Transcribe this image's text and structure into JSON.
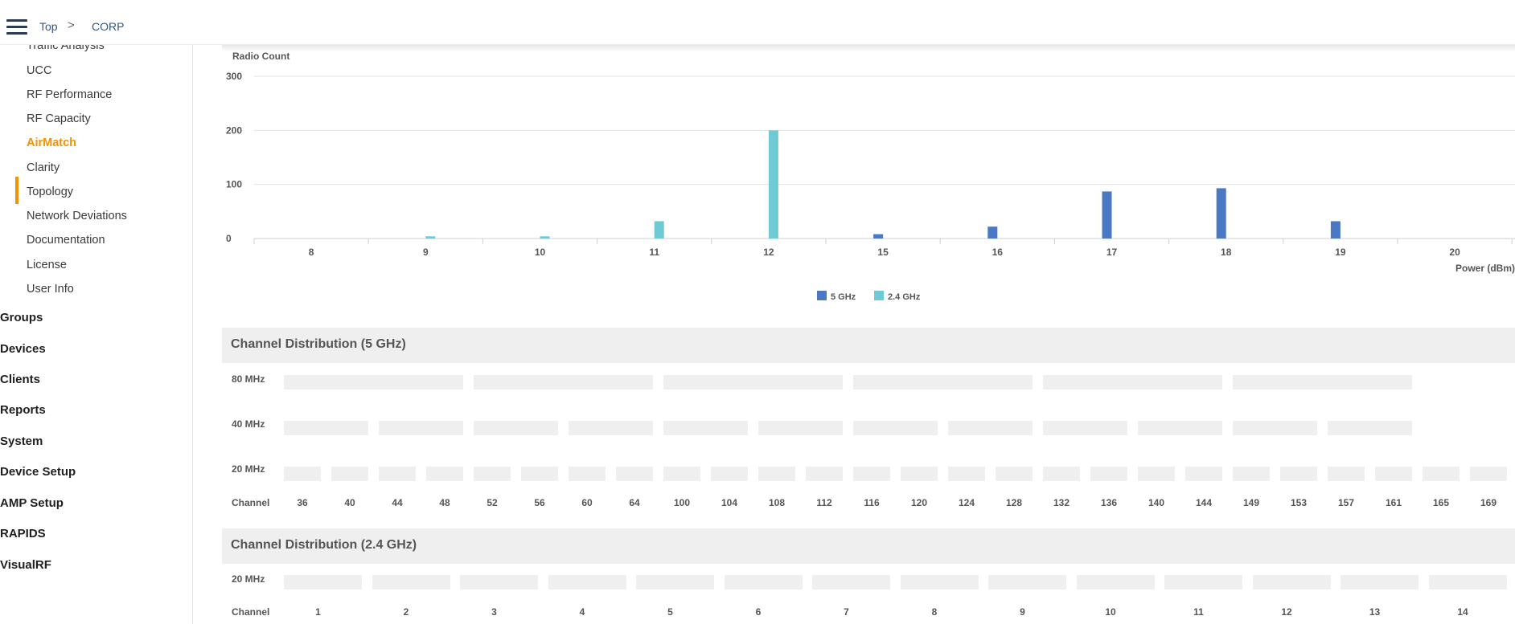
{
  "breadcrumb": {
    "root": "Top",
    "separator": ">",
    "current": "CORP"
  },
  "sidebar": {
    "sub_items": [
      {
        "label": "Traffic Analysis"
      },
      {
        "label": "UCC"
      },
      {
        "label": "RF Performance"
      },
      {
        "label": "RF Capacity"
      },
      {
        "label": "AirMatch",
        "active": true
      },
      {
        "label": "Clarity"
      },
      {
        "label": "Topology"
      },
      {
        "label": "Network Deviations"
      },
      {
        "label": "Documentation"
      },
      {
        "label": "License"
      },
      {
        "label": "User Info"
      }
    ],
    "top_items": [
      {
        "label": "Groups"
      },
      {
        "label": "Devices"
      },
      {
        "label": "Clients"
      },
      {
        "label": "Reports"
      },
      {
        "label": "System"
      },
      {
        "label": "Device Setup"
      },
      {
        "label": "AMP Setup"
      },
      {
        "label": "RAPIDS"
      },
      {
        "label": "VisualRF"
      }
    ],
    "active_color": "#f39200"
  },
  "chart_data": {
    "type": "bar",
    "ylabel": "Radio Count",
    "xlabel": "Power (dBm)",
    "ylim": [
      0,
      300
    ],
    "yticks": [
      0,
      100,
      200,
      300
    ],
    "grid": true,
    "legend_position": "bottom-center",
    "categories": [
      "8",
      "9",
      "10",
      "11",
      "12",
      "15",
      "16",
      "17",
      "18",
      "19",
      "20"
    ],
    "series": [
      {
        "name": "5 GHz",
        "color": "#4a78c2",
        "values": [
          0,
          0,
          0,
          0,
          0,
          8,
          22,
          87,
          93,
          32,
          0
        ]
      },
      {
        "name": "2.4 GHz",
        "color": "#6fcad3",
        "values": [
          0,
          4,
          4,
          32,
          200,
          0,
          0,
          0,
          0,
          0,
          0
        ]
      }
    ]
  },
  "channel_5ghz": {
    "title": "Channel Distribution (5 GHz)",
    "row_labels": {
      "w80": "80 MHz",
      "w40": "40 MHz",
      "w20": "20 MHz",
      "channel": "Channel"
    },
    "channels": [
      "36",
      "40",
      "44",
      "48",
      "52",
      "56",
      "60",
      "64",
      "100",
      "104",
      "108",
      "112",
      "116",
      "120",
      "124",
      "128",
      "132",
      "136",
      "140",
      "144",
      "149",
      "153",
      "157",
      "161",
      "165",
      "169"
    ]
  },
  "channel_24ghz": {
    "title": "Channel Distribution (2.4 GHz)",
    "row_labels": {
      "w20": "20 MHz",
      "channel": "Channel"
    },
    "channels": [
      "1",
      "2",
      "3",
      "4",
      "5",
      "6",
      "7",
      "8",
      "9",
      "10",
      "11",
      "12",
      "13",
      "14"
    ]
  },
  "colors": {
    "cell": "#efefef",
    "section_header": "#efefef",
    "crumb": "#2b5a8a"
  }
}
